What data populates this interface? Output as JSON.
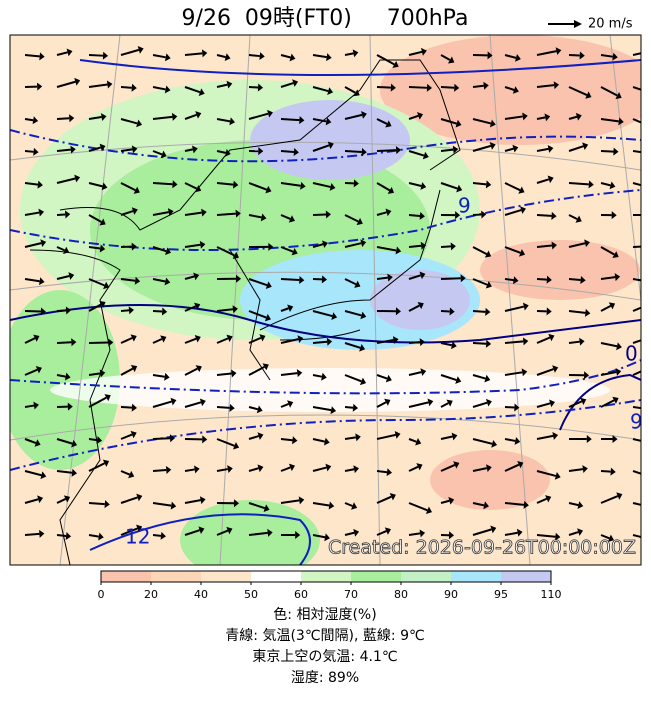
{
  "header": {
    "title": "9/26  09時(FT0)     700hPa",
    "wind_legend": "20 m/s"
  },
  "map": {
    "created": "Created: 2026-09-26T00:00:00Z",
    "contour_labels": [
      "9",
      "12",
      "0",
      "9"
    ]
  },
  "colorbar": {
    "ticks": [
      0,
      20,
      40,
      50,
      60,
      70,
      80,
      90,
      95,
      110
    ],
    "colors": [
      "#f9c3ad",
      "#fcd6b6",
      "#fde6ca",
      "#ffffff",
      "#d2f5c4",
      "#a9ee9c",
      "#c4f0c8",
      "#a8e6fb",
      "#c5c9f2"
    ]
  },
  "caption": [
    "色: 相対湿度(%)",
    "青線: 気温(3℃間隔), 藍線: 9℃",
    "東京上空の気温: 4.1℃",
    "湿度: 89%"
  ]
}
